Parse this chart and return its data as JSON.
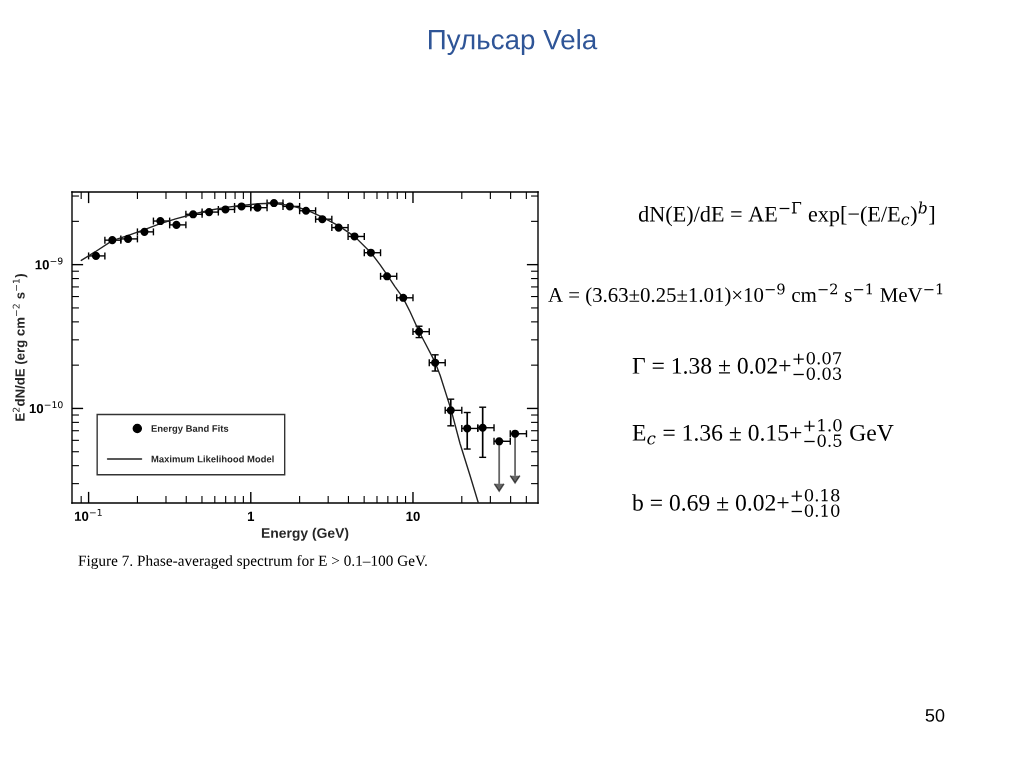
{
  "chart_data": {
    "type": "scatter",
    "title": "Пульсар Vela",
    "xlabel": "Energy (GeV)",
    "ylabel": "E$^{2}$dN/dE (erg cm$^{−2}$ s$^{−1}$)",
    "log": "xy",
    "xlim": [
      0.079,
      59
    ],
    "ylim": [
      2.2e-11,
      3.2e-09
    ],
    "xticks": [
      {
        "value": 0.09,
        "label": null
      },
      {
        "value": 0.1,
        "label": "10$^{−1}$"
      },
      {
        "value": 0.2,
        "label": null
      },
      {
        "value": 0.3,
        "label": null
      },
      {
        "value": 0.4,
        "label": null
      },
      {
        "value": 0.5,
        "label": null
      },
      {
        "value": 0.6,
        "label": null
      },
      {
        "value": 0.7,
        "label": null
      },
      {
        "value": 0.8,
        "label": null
      },
      {
        "value": 0.9,
        "label": null
      },
      1,
      {
        "value": 2,
        "label": null
      },
      {
        "value": 3,
        "label": null
      },
      {
        "value": 4,
        "label": null
      },
      {
        "value": 5,
        "label": null
      },
      {
        "value": 6,
        "label": null
      },
      {
        "value": 7,
        "label": null
      },
      {
        "value": 8,
        "label": null
      },
      {
        "value": 9,
        "label": null
      },
      10,
      {
        "value": 20,
        "label": null
      },
      {
        "value": 30,
        "label": null
      },
      {
        "value": 40,
        "label": null
      },
      {
        "value": 50,
        "label": null
      }
    ],
    "yticks": [
      {
        "value": 3e-09,
        "label": null
      },
      {
        "value": 2e-09,
        "label": null
      },
      {
        "value": 1e-09,
        "label": "10$^{−9}$"
      },
      {
        "value": 9e-10,
        "label": null
      },
      {
        "value": 8e-10,
        "label": null
      },
      {
        "value": 7e-10,
        "label": null
      },
      {
        "value": 6e-10,
        "label": null
      },
      {
        "value": 5e-10,
        "label": null
      },
      {
        "value": 4e-10,
        "label": null
      },
      {
        "value": 3e-10,
        "label": null
      },
      {
        "value": 2e-10,
        "label": null
      },
      {
        "value": 1e-10,
        "label": "10$^{−10}$"
      },
      {
        "value": 9e-11,
        "label": null
      },
      {
        "value": 8e-11,
        "label": null
      },
      {
        "value": 7e-11,
        "label": null
      },
      {
        "value": 6e-11,
        "label": null
      },
      {
        "value": 5e-11,
        "label": null
      },
      {
        "value": 4e-11,
        "label": null
      },
      {
        "value": 3e-11,
        "label": null
      }
    ],
    "legend": "bottom left",
    "series": [
      {
        "name": "Energy Band Fits",
        "marker": "circle",
        "color": "#000000",
        "x": [
          0.111,
          0.14,
          0.175,
          0.221,
          0.277,
          0.348,
          0.441,
          0.553,
          0.698,
          0.877,
          1.1,
          1.39,
          1.74,
          2.19,
          2.76,
          3.48,
          4.36,
          5.5,
          6.92,
          8.71,
          10.9,
          13.7,
          17.1,
          21.6,
          26.9,
          34.0,
          42.6
        ],
        "values": [
          1.15e-09,
          1.48e-09,
          1.51e-09,
          1.69e-09,
          2.01e-09,
          1.89e-09,
          2.24e-09,
          2.32e-09,
          2.42e-09,
          2.54e-09,
          2.49e-09,
          2.68e-09,
          2.54e-09,
          2.37e-09,
          2.07e-09,
          1.81e-09,
          1.57e-09,
          1.21e-09,
          8.3e-10,
          5.88e-10,
          3.42e-10,
          2.08e-10,
          9.7e-11,
          7.26e-11,
          7.34e-11,
          5.91e-11,
          6.67e-11
        ],
        "xerrors": [
          [
            0.1,
            0.126
          ],
          [
            0.126,
            0.158
          ],
          [
            0.158,
            0.2
          ],
          [
            0.2,
            0.251
          ],
          [
            0.251,
            0.316
          ],
          [
            0.316,
            0.398
          ],
          [
            0.398,
            0.501
          ],
          [
            0.501,
            0.631
          ],
          [
            0.631,
            0.794
          ],
          [
            0.794,
            1.0
          ],
          [
            1.0,
            1.26
          ],
          [
            1.26,
            1.58
          ],
          [
            1.58,
            2.0
          ],
          [
            2.0,
            2.51
          ],
          [
            2.51,
            3.16
          ],
          [
            3.16,
            3.98
          ],
          [
            3.98,
            5.01
          ],
          [
            5.01,
            6.31
          ],
          [
            6.31,
            7.94
          ],
          [
            7.94,
            10.0
          ],
          [
            10.0,
            12.6
          ],
          [
            12.6,
            15.8
          ],
          [
            15.8,
            20.0
          ],
          [
            20.0,
            25.1
          ],
          [
            25.1,
            31.6
          ],
          [
            31.6,
            39.8
          ],
          [
            39.8,
            50.1
          ]
        ],
        "errors": [
          null,
          null,
          null,
          null,
          null,
          null,
          null,
          null,
          null,
          null,
          null,
          null,
          null,
          null,
          null,
          null,
          null,
          null,
          null,
          null,
          [
            3.11e-10,
            3.73e-10
          ],
          [
            1.82e-10,
            2.36e-10
          ],
          [
            7.57e-11,
            1.16e-10
          ],
          [
            5.22e-11,
            9.37e-11
          ],
          [
            4.57e-11,
            1.02e-10
          ],
          [
            2.99e-11,
            5.91e-11
          ],
          [
            3.41e-11,
            6.67e-11
          ]
        ]
      },
      {
        "name": "Maximum Likelihood Model",
        "type": "line",
        "color": "#222222",
        "x": [
          0.0901,
          0.11,
          0.14,
          0.174,
          0.221,
          0.274,
          0.344,
          0.439,
          0.558,
          0.701,
          0.88,
          1.11,
          1.37,
          1.74,
          2.19,
          2.74,
          3.49,
          4.39,
          5.51,
          6.26,
          6.91,
          7.74,
          8.67,
          9.58,
          10.9,
          11.9,
          13.7,
          14.7,
          17.2,
          19.5,
          22.5,
          25.3
        ],
        "values": [
          1.07e-09,
          1.23e-09,
          1.47e-09,
          1.59e-09,
          1.75e-09,
          1.92e-09,
          2.08e-09,
          2.24e-09,
          2.39e-09,
          2.5e-09,
          2.58e-09,
          2.65e-09,
          2.67e-09,
          2.58e-09,
          2.41e-09,
          2.15e-09,
          1.86e-09,
          1.56e-09,
          1.21e-09,
          1e-09,
          8.53e-10,
          7.04e-10,
          5.9e-10,
          4.72e-10,
          3.43e-10,
          2.84e-10,
          2.09e-10,
          1.7e-10,
          9.73e-11,
          5.7e-11,
          3.4e-11,
          2.2e-11
        ]
      }
    ],
    "annotations": [
      "dN(E)/dE = AE$^{−Γ}$ exp[−(E/E$_{c}$)$^{b}$]",
      "A = (3.63±0.25±1.01)×10$^{−9}$ cm$^{−2}$ s$^{−1}$ MeV$^{−1}$",
      "Γ = 1.38 ± 0.02+$^{+0.07}$$_{−0.03}$",
      "E$_{c}$ = 1.36 ± 0.15+$^{+1.0}$$_{−0.5}$ GeV",
      "b = 0.69 ± 0.02+$^{+0.18}$$_{−0.10}$",
      "Figure 7. Phase-averaged spectrum for E > 0.1–100 GeV.",
      "50"
    ]
  }
}
